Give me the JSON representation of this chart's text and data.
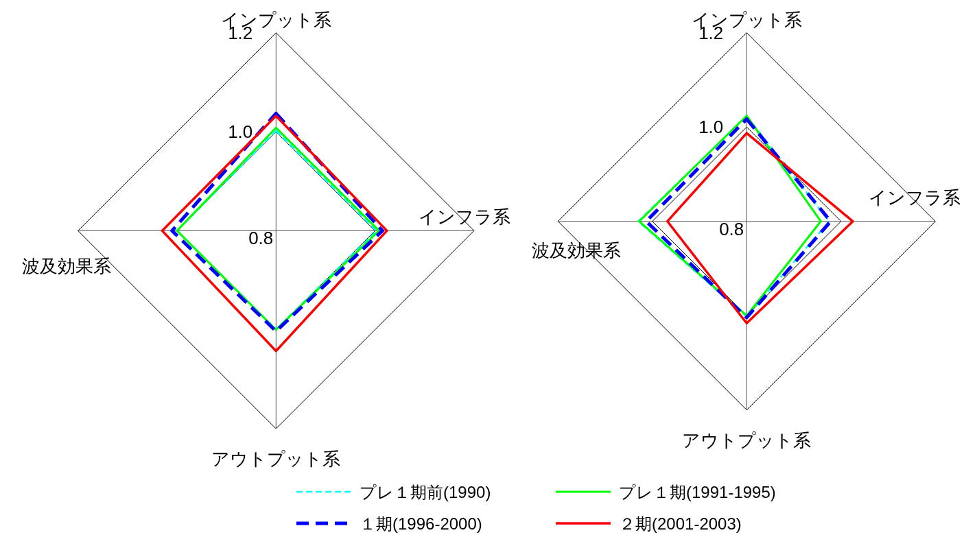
{
  "chart_data": [
    {
      "type": "radar",
      "categories": [
        "インプット系",
        "インフラ系",
        "アウトプット系",
        "波及効果系"
      ],
      "series": [
        {
          "name": "プレ１期前(1990)",
          "color": "#00ffff",
          "line_style": "dashed",
          "values": [
            1.002,
            1.003,
            0.999,
            1.0
          ]
        },
        {
          "name": "プレ１期(1991-1995)",
          "color": "#00ff00",
          "line_style": "solid",
          "values": [
            1.008,
            1.008,
            1.0,
            1.0
          ]
        },
        {
          "name": "１期(1996-2000)",
          "color": "#0000ff",
          "line_style": "dashed",
          "values": [
            1.037,
            1.015,
            1.003,
            1.01
          ]
        },
        {
          "name": "２期(2001-2003)",
          "color": "#ff0000",
          "line_style": "solid",
          "values": [
            1.032,
            1.024,
            1.043,
            1.03
          ]
        }
      ],
      "ylim": [
        0.8,
        1.2
      ],
      "yticks": [
        {
          "value": 0.8,
          "label": "0.8"
        },
        {
          "value": 1,
          "label": "1.0"
        },
        {
          "value": 1.2,
          "label": "1.2"
        }
      ],
      "grid": true,
      "legend": "bottom"
    },
    {
      "type": "radar",
      "categories": [
        "インプット系",
        "インフラ系",
        "アウトプット系",
        "波及効果系"
      ],
      "series": [
        {
          "color": "#00ffff",
          "line_style": "dashed",
          "values": [
            1.023,
            0.975,
            1.002,
            1.03
          ]
        },
        {
          "color": "#00ff00",
          "line_style": "solid",
          "values": [
            1.024,
            0.957,
            1.0,
            1.028
          ]
        },
        {
          "color": "#0000ff",
          "line_style": "dashed",
          "values": [
            1.017,
            0.978,
            1.004,
            1.013
          ]
        },
        {
          "color": "#ff0000",
          "line_style": "solid",
          "values": [
            0.987,
            1.025,
            1.016,
            0.968
          ]
        }
      ],
      "ylim": [
        0.8,
        1.2
      ],
      "yticks": [
        {
          "value": 0.8,
          "label": "0.8"
        },
        {
          "value": 1,
          "label": "1.0"
        },
        {
          "value": 1.2,
          "label": "1.2"
        }
      ],
      "grid": true
    }
  ]
}
